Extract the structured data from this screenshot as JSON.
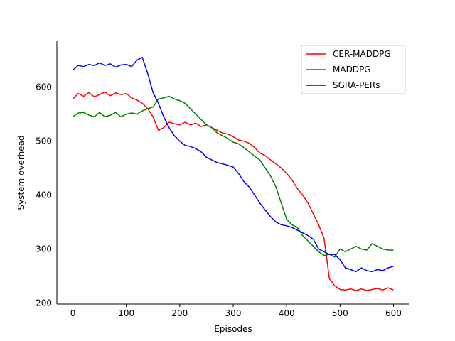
{
  "chart_data": {
    "type": "line",
    "title": "",
    "xlabel": "Episodes",
    "ylabel": "System overhead",
    "xlim": [
      -30,
      630
    ],
    "ylim": [
      198,
      685
    ],
    "xticks": [
      0,
      100,
      200,
      300,
      400,
      500,
      600
    ],
    "yticks": [
      200,
      300,
      400,
      500,
      600
    ],
    "grid": false,
    "legend_position": "top-right",
    "series": [
      {
        "name": "CER-MADDPG",
        "color": "#ff0000",
        "x": [
          0,
          10,
          20,
          30,
          40,
          50,
          60,
          70,
          80,
          90,
          100,
          110,
          120,
          130,
          140,
          150,
          160,
          170,
          180,
          190,
          200,
          210,
          220,
          230,
          240,
          250,
          260,
          270,
          280,
          290,
          300,
          310,
          320,
          330,
          340,
          350,
          360,
          370,
          380,
          390,
          400,
          410,
          420,
          430,
          440,
          450,
          460,
          470,
          480,
          490,
          500,
          510,
          520,
          530,
          540,
          550,
          560,
          570,
          580,
          590,
          600
        ],
        "values": [
          578,
          588,
          583,
          590,
          582,
          586,
          591,
          584,
          589,
          586,
          588,
          580,
          576,
          570,
          560,
          545,
          520,
          525,
          535,
          532,
          530,
          535,
          530,
          533,
          527,
          530,
          525,
          520,
          515,
          513,
          508,
          502,
          500,
          496,
          488,
          478,
          473,
          465,
          458,
          450,
          440,
          428,
          412,
          400,
          385,
          365,
          345,
          320,
          245,
          232,
          225,
          224,
          226,
          223,
          226,
          223,
          225,
          227,
          224,
          228,
          224
        ]
      },
      {
        "name": "MADDPG",
        "color": "#008000",
        "x": [
          0,
          10,
          20,
          30,
          40,
          50,
          60,
          70,
          80,
          90,
          100,
          110,
          120,
          130,
          140,
          150,
          160,
          170,
          180,
          190,
          200,
          210,
          220,
          230,
          240,
          250,
          260,
          270,
          280,
          290,
          300,
          310,
          320,
          330,
          340,
          350,
          360,
          370,
          380,
          390,
          400,
          410,
          420,
          430,
          440,
          450,
          460,
          470,
          480,
          490,
          500,
          510,
          520,
          530,
          540,
          550,
          560,
          570,
          580,
          590,
          600
        ],
        "values": [
          545,
          552,
          553,
          548,
          545,
          553,
          545,
          548,
          553,
          545,
          550,
          552,
          550,
          556,
          560,
          563,
          578,
          580,
          583,
          578,
          575,
          570,
          560,
          550,
          540,
          530,
          525,
          515,
          510,
          505,
          498,
          495,
          488,
          480,
          472,
          465,
          450,
          435,
          415,
          385,
          355,
          345,
          340,
          325,
          315,
          305,
          295,
          288,
          290,
          285,
          300,
          295,
          300,
          305,
          300,
          298,
          310,
          305,
          300,
          298,
          298
        ]
      },
      {
        "name": "SGRA-PERs",
        "color": "#0000ff",
        "x": [
          0,
          10,
          20,
          30,
          40,
          50,
          60,
          70,
          80,
          90,
          100,
          110,
          120,
          130,
          140,
          150,
          160,
          170,
          180,
          190,
          200,
          210,
          220,
          230,
          240,
          250,
          260,
          270,
          280,
          290,
          300,
          310,
          320,
          330,
          340,
          350,
          360,
          370,
          380,
          390,
          400,
          410,
          420,
          430,
          440,
          450,
          460,
          470,
          480,
          490,
          500,
          510,
          520,
          530,
          540,
          550,
          560,
          570,
          580,
          590,
          600
        ],
        "values": [
          632,
          640,
          638,
          642,
          640,
          645,
          640,
          643,
          637,
          641,
          642,
          638,
          650,
          655,
          625,
          590,
          570,
          545,
          525,
          510,
          500,
          492,
          490,
          486,
          480,
          470,
          465,
          460,
          458,
          455,
          452,
          440,
          425,
          415,
          400,
          385,
          372,
          360,
          350,
          345,
          343,
          340,
          335,
          330,
          325,
          318,
          300,
          295,
          290,
          290,
          280,
          265,
          262,
          258,
          265,
          260,
          258,
          262,
          260,
          265,
          268
        ]
      }
    ]
  }
}
